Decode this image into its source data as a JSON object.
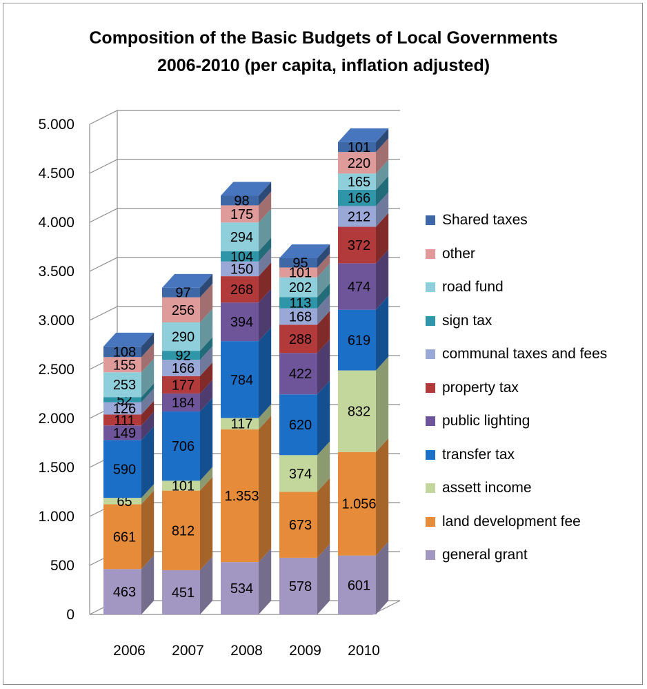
{
  "chart_data": {
    "type": "bar",
    "stacked": true,
    "three_d": true,
    "title_lines": [
      "Composition of the Basic Budgets of Local Governments",
      "2006-2010 (per capita, inflation adjusted)"
    ],
    "xlabel": "",
    "ylabel": "",
    "categories": [
      "2006",
      "2007",
      "2008",
      "2009",
      "2010"
    ],
    "ylim": [
      0,
      5000
    ],
    "y_ticks": [
      0,
      500,
      1000,
      1500,
      2000,
      2500,
      3000,
      3500,
      4000,
      4500,
      5000
    ],
    "y_tick_labels": [
      "0",
      "500",
      "1.000",
      "1.500",
      "2.000",
      "2.500",
      "3.000",
      "3.500",
      "4.000",
      "4.500",
      "5.000"
    ],
    "grid": true,
    "legend_position": "right",
    "series": [
      {
        "name": "general grant",
        "color": "#a297c2",
        "values": [
          463,
          451,
          534,
          578,
          601
        ],
        "labels": [
          "463",
          "451",
          "534",
          "578",
          "601"
        ]
      },
      {
        "name": "land development fee",
        "color": "#e58b3a",
        "values": [
          661,
          812,
          1353,
          673,
          1056
        ],
        "labels": [
          "661",
          "812",
          "1.353",
          "673",
          "1.056"
        ]
      },
      {
        "name": "assett income",
        "color": "#c3d69b",
        "values": [
          65,
          101,
          117,
          374,
          832
        ],
        "labels": [
          "65",
          "101",
          "117",
          "374",
          "832"
        ]
      },
      {
        "name": "transfer tax",
        "color": "#1c6fc7",
        "values": [
          590,
          706,
          784,
          620,
          619
        ],
        "labels": [
          "590",
          "706",
          "784",
          "620",
          "619"
        ]
      },
      {
        "name": "public lighting",
        "color": "#6e5499",
        "values": [
          149,
          184,
          394,
          422,
          474
        ],
        "labels": [
          "149",
          "184",
          "394",
          "422",
          "474"
        ]
      },
      {
        "name": "property tax",
        "color": "#b33a3a",
        "values": [
          111,
          177,
          268,
          288,
          372
        ],
        "labels": [
          "111",
          "177",
          "268",
          "288",
          "372"
        ]
      },
      {
        "name": "communal taxes and fees",
        "color": "#9aa8d8",
        "values": [
          126,
          166,
          150,
          168,
          212
        ],
        "labels": [
          "126",
          "166",
          "150",
          "168",
          "212"
        ]
      },
      {
        "name": "sign tax",
        "color": "#2f95a8",
        "values": [
          52,
          92,
          104,
          113,
          166
        ],
        "labels": [
          "52",
          "92",
          "104",
          "113",
          "166"
        ]
      },
      {
        "name": "road fund",
        "color": "#8fcfdb",
        "values": [
          253,
          290,
          294,
          202,
          165
        ],
        "labels": [
          "253",
          "290",
          "294",
          "202",
          "165"
        ]
      },
      {
        "name": "other",
        "color": "#df9a9a",
        "values": [
          155,
          256,
          175,
          101,
          220
        ],
        "labels": [
          "155",
          "256",
          "175",
          "101",
          "220"
        ]
      },
      {
        "name": "Shared taxes",
        "color": "#3e67a5",
        "values": [
          108,
          97,
          98,
          95,
          101
        ],
        "labels": [
          "108",
          "97",
          "98",
          "95",
          "101"
        ]
      }
    ]
  }
}
